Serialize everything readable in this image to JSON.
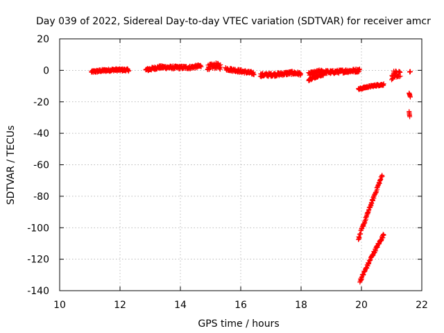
{
  "chart_data": {
    "type": "scatter",
    "title": "Day 039 of 2022, Sidereal Day-to-day VTEC variation (SDTVAR) for receiver amcr",
    "xlabel": "GPS time / hours",
    "ylabel": "SDTVAR / TECUs",
    "xlim": [
      10,
      22
    ],
    "ylim": [
      -140,
      20
    ],
    "xticks": [
      10,
      12,
      14,
      16,
      18,
      20,
      22
    ],
    "yticks": [
      20,
      0,
      -20,
      -40,
      -60,
      -80,
      -100,
      -120,
      -140
    ],
    "grid": true,
    "marker": "plus",
    "color": "#ff0000",
    "segments": [
      {
        "points": [
          [
            11.05,
            -1.0
          ],
          [
            11.4,
            -0.2
          ],
          [
            11.8,
            0.3
          ],
          [
            12.3,
            0.2
          ]
        ],
        "spread": 1.6
      },
      {
        "points": [
          [
            12.85,
            0.2
          ],
          [
            13.3,
            2.0
          ],
          [
            13.8,
            1.8
          ],
          [
            14.3,
            1.8
          ],
          [
            14.7,
            2.8
          ]
        ],
        "spread": 2.0
      },
      {
        "points": [
          [
            14.9,
            2.0
          ],
          [
            15.2,
            3.0
          ],
          [
            15.35,
            2.2
          ]
        ],
        "spread": 3.5
      },
      {
        "points": [
          [
            15.5,
            1.0
          ],
          [
            15.9,
            -0.2
          ],
          [
            16.3,
            -1.5
          ],
          [
            16.45,
            -2.0
          ]
        ],
        "spread": 2.0
      },
      {
        "points": [
          [
            16.65,
            -3.0
          ],
          [
            17.2,
            -2.6
          ],
          [
            17.7,
            -1.6
          ],
          [
            18.0,
            -2.2
          ]
        ],
        "spread": 2.2
      },
      {
        "points": [
          [
            18.25,
            -2.5
          ],
          [
            18.6,
            -0.8
          ],
          [
            19.0,
            -1.2
          ],
          [
            19.4,
            -0.6
          ],
          [
            19.95,
            0.0
          ]
        ],
        "spread": 2.2
      },
      {
        "points": [
          [
            18.25,
            -6.0
          ],
          [
            18.55,
            -3.5
          ],
          [
            18.75,
            -2.5
          ]
        ],
        "spread": 1.5
      },
      {
        "points": [
          [
            19.9,
            -12.0
          ],
          [
            20.2,
            -10.5
          ],
          [
            20.5,
            -9.5
          ],
          [
            20.75,
            -9.0
          ]
        ],
        "spread": 1.2
      },
      {
        "points": [
          [
            19.9,
            -107.0
          ],
          [
            20.3,
            -86.0
          ],
          [
            20.7,
            -66.0
          ]
        ],
        "spread": 2.0
      },
      {
        "points": [
          [
            19.95,
            -134.0
          ],
          [
            20.35,
            -118.0
          ],
          [
            20.75,
            -104.0
          ]
        ],
        "spread": 2.0
      },
      {
        "points": [
          [
            21.0,
            -3.5
          ],
          [
            21.15,
            -2.0
          ],
          [
            21.3,
            -3.5
          ]
        ],
        "spread": 5.0
      },
      {
        "points": [
          [
            21.6,
            -1.0
          ],
          [
            21.62,
            -0.8
          ]
        ],
        "spread": 0.5
      },
      {
        "points": [
          [
            21.58,
            -14.5
          ],
          [
            21.62,
            -17.0
          ]
        ],
        "spread": 1.0
      },
      {
        "points": [
          [
            21.58,
            -26.5
          ],
          [
            21.6,
            -29.5
          ]
        ],
        "spread": 1.0
      }
    ]
  }
}
